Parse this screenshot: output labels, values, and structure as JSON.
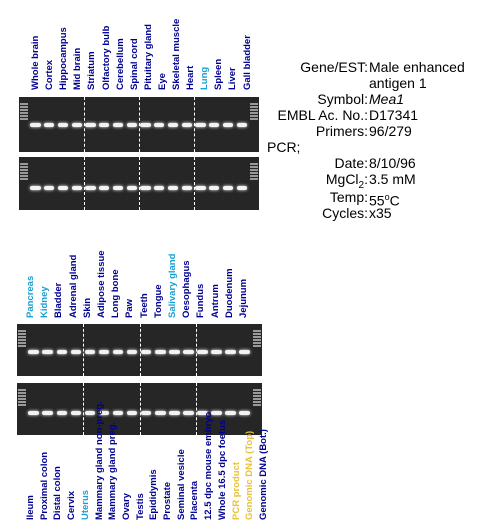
{
  "colors": {
    "blue_label": "#000090",
    "cyan_label": "#1a9fd0",
    "yellow_label": "#e8c23a",
    "gel": "#262626"
  },
  "panel1": {
    "lanes": [
      {
        "label": "Whole brain",
        "color": "#000090"
      },
      {
        "label": "Cortex",
        "color": "#000090"
      },
      {
        "label": "Hippocampus",
        "color": "#000090"
      },
      {
        "label": "Mid brain",
        "color": "#000090"
      },
      {
        "label": "Striatum",
        "color": "#000090"
      },
      {
        "label": "Olfactory bulb",
        "color": "#000090"
      },
      {
        "label": "Cerebellum",
        "color": "#000090"
      },
      {
        "label": "Spinal cord",
        "color": "#000090"
      },
      {
        "label": "Pituitary gland",
        "color": "#000090"
      },
      {
        "label": "Eye",
        "color": "#000090"
      },
      {
        "label": "Skeletal muscle",
        "color": "#000090"
      },
      {
        "label": "Heart",
        "color": "#000090"
      },
      {
        "label": "Lung",
        "color": "#1a9fd0"
      },
      {
        "label": "Spleen",
        "color": "#000090"
      },
      {
        "label": "Liver",
        "color": "#000090"
      },
      {
        "label": "Gall bladder",
        "color": "#000090"
      }
    ]
  },
  "panel2": {
    "lanes": [
      {
        "label": "Pancreas",
        "color": "#1a9fd0"
      },
      {
        "label": "Kidney",
        "color": "#1a9fd0"
      },
      {
        "label": "Bladder",
        "color": "#000090"
      },
      {
        "label": "Adrenal gland",
        "color": "#000090"
      },
      {
        "label": "Skin",
        "color": "#000090"
      },
      {
        "label": "Adipose tissue",
        "color": "#000090"
      },
      {
        "label": "Long bone",
        "color": "#000090"
      },
      {
        "label": "Paw",
        "color": "#000090"
      },
      {
        "label": "Teeth",
        "color": "#000090"
      },
      {
        "label": "Tongue",
        "color": "#000090"
      },
      {
        "label": "Salivary gland",
        "color": "#1a9fd0"
      },
      {
        "label": "Oesophagus",
        "color": "#000090"
      },
      {
        "label": "Fundus",
        "color": "#000090"
      },
      {
        "label": "Antrum",
        "color": "#000090"
      },
      {
        "label": "Duodenum",
        "color": "#000090"
      },
      {
        "label": "Jejunum",
        "color": "#000090"
      }
    ]
  },
  "panel3": {
    "lanes": [
      {
        "label": "Ileum",
        "color": "#000090"
      },
      {
        "label": "Proximal colon",
        "color": "#000090"
      },
      {
        "label": "Distal colon",
        "color": "#000090"
      },
      {
        "label": "Cervix",
        "color": "#000090"
      },
      {
        "label": "Uterus",
        "color": "#1a9fd0"
      },
      {
        "label": "Mammary gland non-preg.",
        "color": "#000090"
      },
      {
        "label": "Mammary gland preg.",
        "color": "#000090"
      },
      {
        "label": "Ovary",
        "color": "#000090"
      },
      {
        "label": "Testis",
        "color": "#000090"
      },
      {
        "label": "Epididymis",
        "color": "#000090"
      },
      {
        "label": "Prostate",
        "color": "#000090"
      },
      {
        "label": "Seminal vesicle",
        "color": "#000090"
      },
      {
        "label": "Placenta",
        "color": "#000090"
      },
      {
        "label": "12.5 dpc mouse embryo",
        "color": "#000090"
      },
      {
        "label": "Whole 16.5 dpc foetus",
        "color": "#000090"
      },
      {
        "label": "PCR product",
        "color": "#e8c23a"
      },
      {
        "label": "Genomic DNA (Top)",
        "color": "#e8c23a"
      },
      {
        "label": "Genomic DNA (Bot.)",
        "color": "#000090"
      }
    ]
  },
  "info": {
    "gene_label": "Gene/EST:",
    "gene_value_line1": "Male enhanced",
    "gene_value_line2": "antigen 1",
    "symbol_label": "Symbol:",
    "symbol_value": "Mea1",
    "embl_label": "EMBL Ac. No.:",
    "embl_value": "D17341",
    "primers_label": "Primers:",
    "primers_value": "96/279",
    "pcr_label": "PCR;",
    "date_label": "Date:",
    "date_value": "8/10/96",
    "mgcl_label_main": "MgCl",
    "mgcl_label_sub": "2",
    "mgcl_label_colon": ":",
    "mgcl_value": "3.5 mM",
    "temp_label": "Temp:",
    "temp_value_main": "55",
    "temp_value_sup": "o",
    "temp_value_unit": "C",
    "cycles_label": "Cycles:",
    "cycles_value": "x35"
  }
}
